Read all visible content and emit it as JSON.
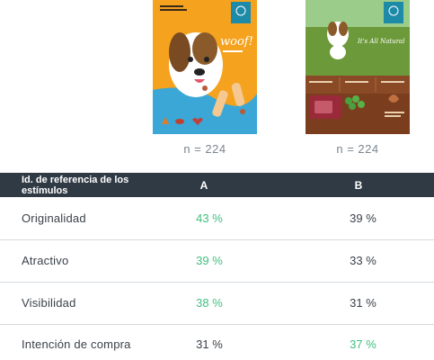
{
  "stimuli": {
    "a": {
      "n": "n = 224",
      "package_text": "woof!",
      "package_colors": {
        "top": "#f5a21e",
        "bottom": "#3aa7d6",
        "badge": "#1d8aa8"
      }
    },
    "b": {
      "n": "n = 224",
      "package_text": "It's All Natural",
      "package_colors": {
        "top": "#6c9a3a",
        "bottom": "#7a3e1f",
        "badge": "#1d8aa8"
      }
    }
  },
  "table": {
    "header": {
      "label": "Id. de referencia de los estímulos",
      "col_a": "A",
      "col_b": "B"
    },
    "rows": [
      {
        "label": "Originalidad",
        "a": "43 %",
        "b": "39 %",
        "winner": "a"
      },
      {
        "label": "Atractivo",
        "a": "39 %",
        "b": "33 %",
        "winner": "a"
      },
      {
        "label": "Visibilidad",
        "a": "38 %",
        "b": "31 %",
        "winner": "a"
      },
      {
        "label": "Intención de compra",
        "a": "31 %",
        "b": "37 %",
        "winner": "b"
      }
    ]
  },
  "colors": {
    "header_bg": "#303a45",
    "highlight": "#3fbf7f",
    "text": "#3a4149",
    "divider": "#d5d9dd"
  }
}
